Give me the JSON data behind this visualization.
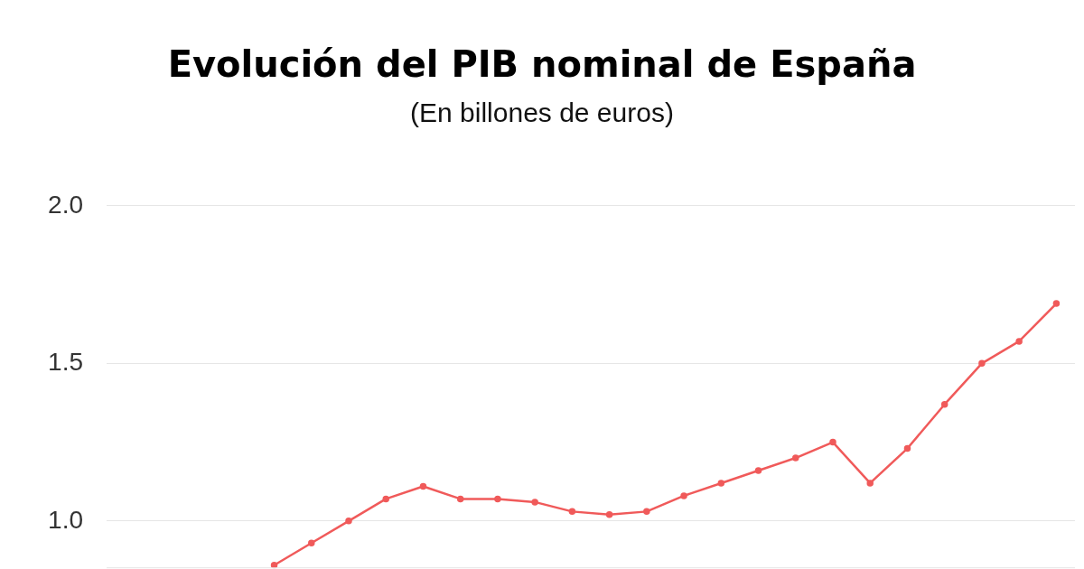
{
  "chart_data": {
    "type": "line",
    "title": "Evolución del PIB nominal de España",
    "subtitle": "(En billones de euros)",
    "categories": [
      null,
      null,
      null,
      null,
      null,
      null,
      null,
      null,
      null,
      null,
      null,
      null,
      null,
      null,
      null,
      null,
      null,
      null,
      null,
      null,
      null,
      null,
      null,
      null,
      null,
      null
    ],
    "series": [
      {
        "color": "#f05a5a",
        "values": [
          null,
          null,
          null,
          null,
          0.86,
          0.93,
          1.0,
          1.07,
          1.11,
          1.07,
          1.07,
          1.06,
          1.03,
          1.02,
          1.03,
          1.08,
          1.12,
          1.16,
          1.2,
          1.25,
          1.12,
          1.23,
          1.37,
          1.5,
          1.57,
          1.69
        ]
      }
    ],
    "ylim": [
      0.85,
      2.0
    ],
    "yticks": [
      {
        "value": 1.0,
        "label": "1.0"
      },
      {
        "value": 1.5,
        "label": "1.5"
      },
      {
        "value": 2.0,
        "label": "2.0"
      }
    ],
    "grid": "y",
    "legend": false,
    "tick_labels": "y",
    "marker": "circle",
    "line_style": "solid"
  }
}
